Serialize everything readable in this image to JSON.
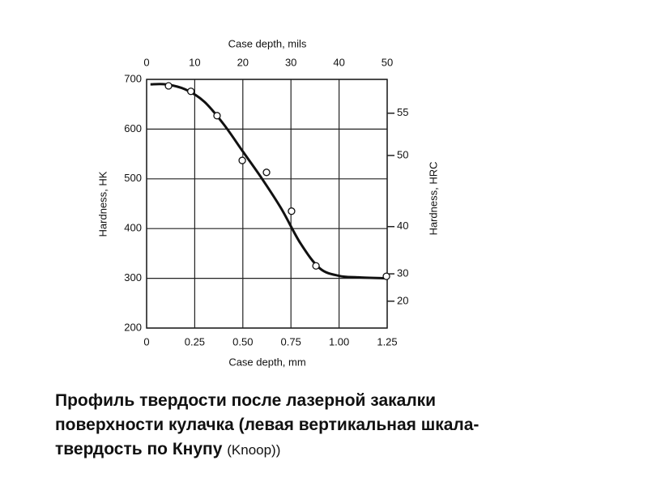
{
  "chart_data": {
    "type": "scatter",
    "x_label": "Case depth, mm",
    "x2_label": "Case depth, mils",
    "y_label": "Hardness, HK",
    "y2_label": "Hardness, HRC",
    "xlim": [
      0,
      1.25
    ],
    "xticks": [
      0,
      0.25,
      {
        "value": 0.5,
        "label": "0.50"
      },
      0.75,
      {
        "value": 1.0,
        "label": "1.00"
      },
      1.25
    ],
    "x2lim": [
      0,
      50
    ],
    "x2ticks": [
      0,
      10,
      20,
      30,
      40,
      50
    ],
    "ylim": [
      200,
      700
    ],
    "yticks": [
      200,
      300,
      400,
      500,
      600,
      700
    ],
    "y2ticks": [
      20,
      30,
      40,
      50,
      55
    ],
    "y2ticks_hk": [
      254,
      309,
      404,
      547,
      632
    ],
    "grid": true,
    "color": "#111111",
    "x": [
      0.114,
      0.23,
      0.366,
      0.497,
      0.623,
      0.753,
      0.88,
      1.246
    ],
    "values": [
      687,
      676,
      627,
      537,
      513,
      435,
      325,
      304
    ],
    "curve": {
      "x": [
        0.02,
        0.1,
        0.2,
        0.3,
        0.4,
        0.5,
        0.6,
        0.7,
        0.8,
        0.9,
        1.0,
        1.1,
        1.25
      ],
      "values": [
        690,
        690,
        680,
        655,
        610,
        555,
        500,
        440,
        370,
        320,
        305,
        302,
        300
      ]
    }
  },
  "caption": {
    "lines": [
      "Профиль твердости после лазерной закалки",
      "поверхности кулачка (левая вертикальная шкала-",
      "твердость по Кнупу"
    ],
    "note": "(Knoop))"
  }
}
